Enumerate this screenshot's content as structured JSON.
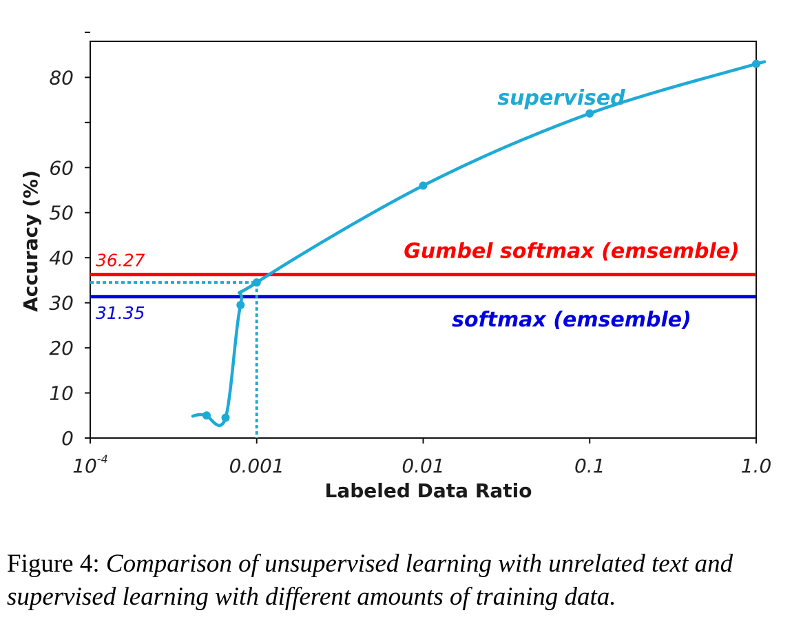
{
  "chart_data": {
    "type": "line",
    "xlabel": "Labeled Data Ratio",
    "ylabel": "Accuracy (%)",
    "x_scale": "log",
    "xlim": [
      0.0001,
      1.0
    ],
    "ylim": [
      0,
      88
    ],
    "x_ticks": [
      {
        "value": 0.0001,
        "label": "10",
        "sup": "-4"
      },
      {
        "value": 0.001,
        "label": "0.001",
        "sup": ""
      },
      {
        "value": 0.01,
        "label": "0.01",
        "sup": ""
      },
      {
        "value": 0.1,
        "label": "0.1",
        "sup": ""
      },
      {
        "value": 1.0,
        "label": "1.0",
        "sup": ""
      }
    ],
    "y_ticks": [
      {
        "value": 0,
        "label": "0"
      },
      {
        "value": 10,
        "label": "10"
      },
      {
        "value": 20,
        "label": "20"
      },
      {
        "value": 30,
        "label": "30"
      },
      {
        "value": 40,
        "label": "40"
      },
      {
        "value": 50,
        "label": "50"
      },
      {
        "value": 60,
        "label": "60"
      },
      {
        "value": 70,
        "label": ""
      },
      {
        "value": 80,
        "label": "80"
      },
      {
        "value": 90,
        "label": ""
      }
    ],
    "series": [
      {
        "name": "supervised",
        "color": "#1eaad6",
        "points": [
          {
            "x": 0.0005,
            "y": 5.0
          },
          {
            "x": 0.00065,
            "y": 4.5
          },
          {
            "x": 0.0008,
            "y": 29.5
          },
          {
            "x": 0.001,
            "y": 34.5
          },
          {
            "x": 0.01,
            "y": 56.0
          },
          {
            "x": 0.1,
            "y": 72.0
          },
          {
            "x": 1.0,
            "y": 83.0
          }
        ]
      }
    ],
    "reference_lines": [
      {
        "name": "Gumbel softmax (emsemble)",
        "value": 36.27,
        "value_label": "36.27",
        "color": "#ff0000"
      },
      {
        "name": "softmax (emsemble)",
        "value": 31.35,
        "value_label": "31.35",
        "color": "#0000e0"
      }
    ],
    "marker_guide": {
      "x": 0.001,
      "y": 34.5,
      "color": "#1eaad6"
    }
  },
  "caption": {
    "label": "Figure 4:",
    "text": "Comparison of unsupervised learning with unrelated text and supervised learning with different amounts of training data."
  }
}
